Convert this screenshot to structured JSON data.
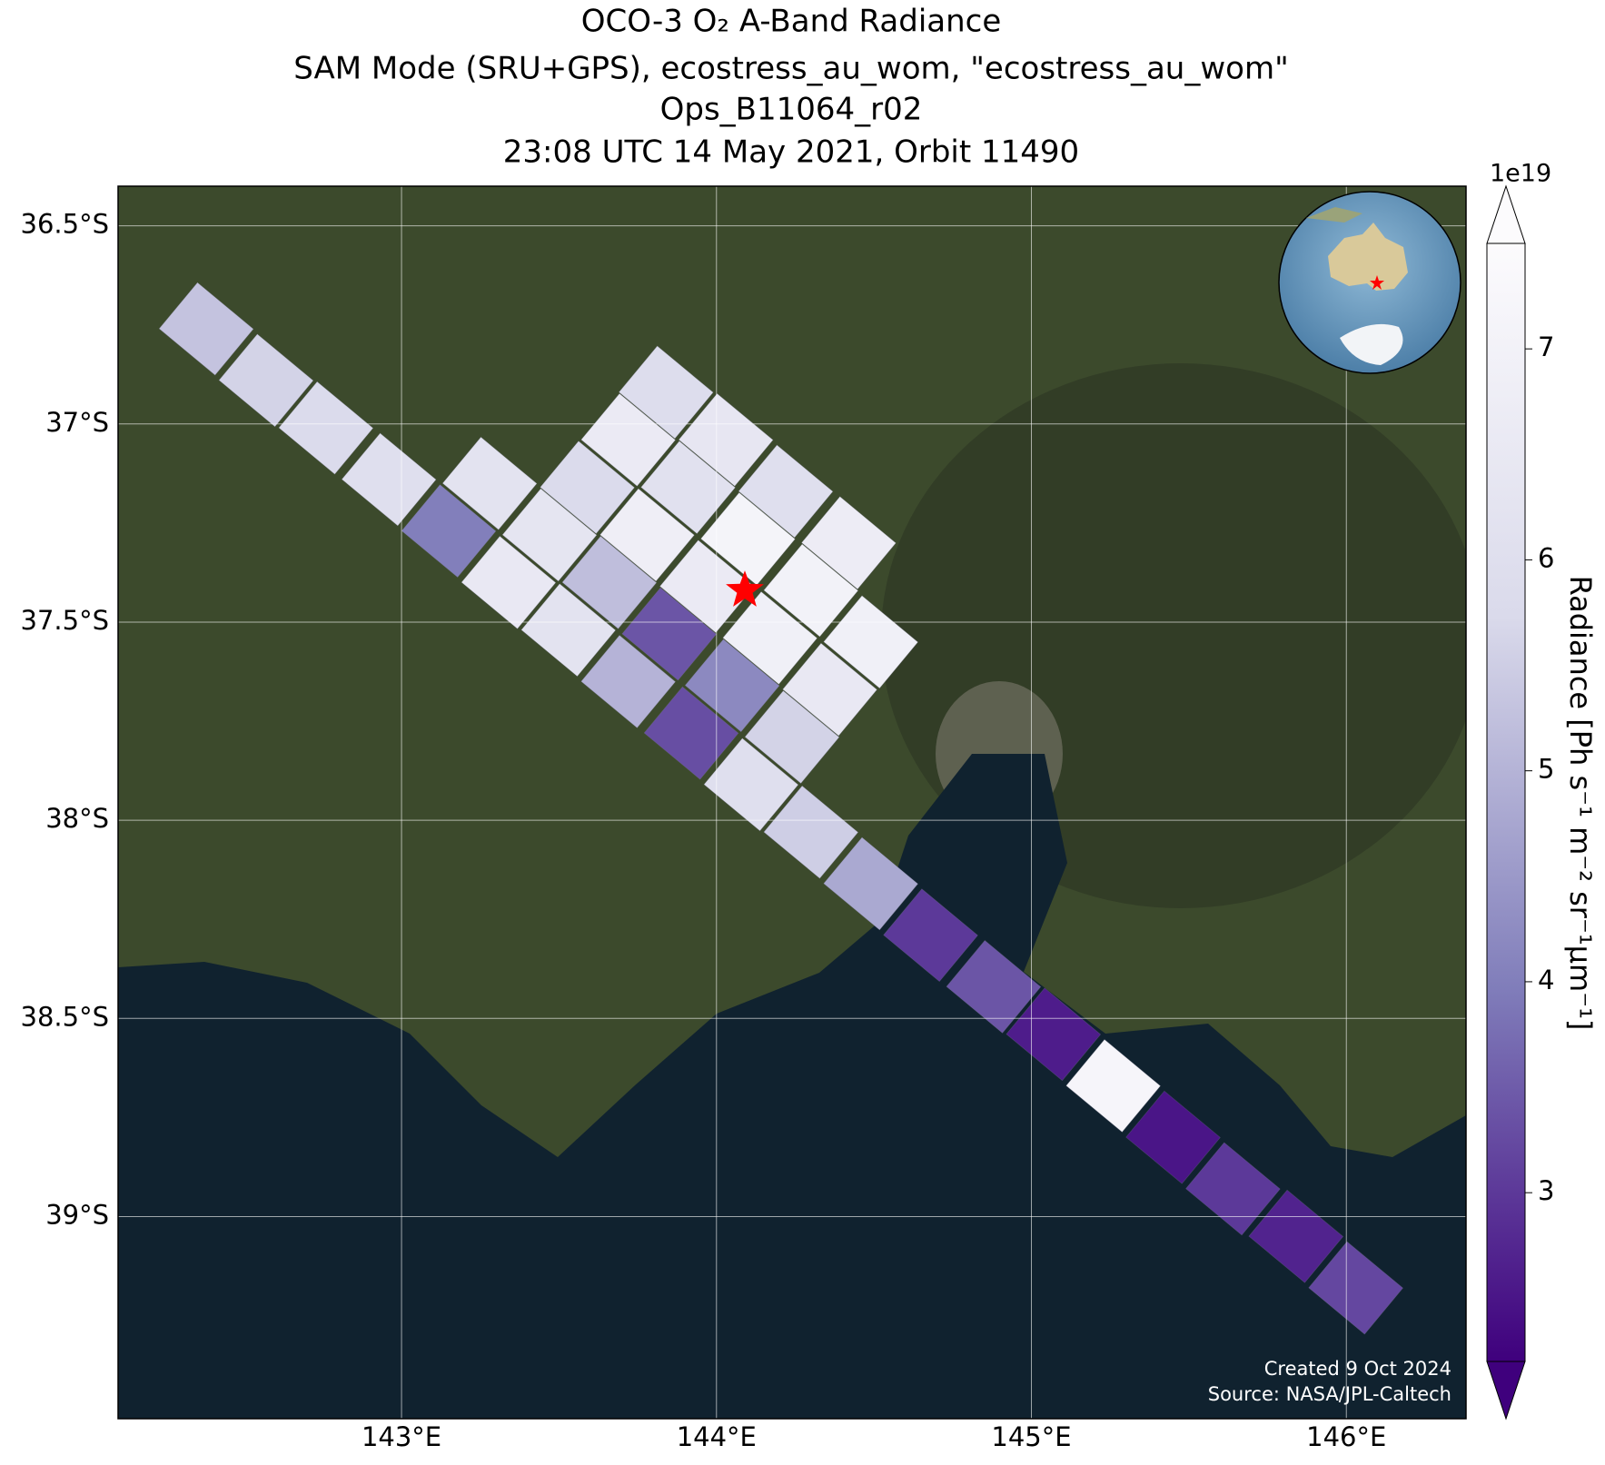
{
  "chart_data": {
    "type": "map",
    "title": [
      "OCO-3 O₂ A-Band Radiance",
      "SAM Mode (SRU+GPS), ecostress_au_wom, \"ecostress_au_wom\"",
      "Ops_B11064_r02",
      "23:08 UTC 14 May 2021, Orbit 11490"
    ],
    "xlim": [
      142.1,
      146.38
    ],
    "ylim": [
      -39.51,
      -36.4
    ],
    "xticks": [
      {
        "value": 143,
        "label": "143°E"
      },
      {
        "value": 144,
        "label": "144°E"
      },
      {
        "value": 145,
        "label": "145°E"
      },
      {
        "value": 146,
        "label": "146°E"
      }
    ],
    "yticks": [
      {
        "value": -36.5,
        "label": "36.5°S"
      },
      {
        "value": -37,
        "label": "37°S"
      },
      {
        "value": -37.5,
        "label": "37.5°S"
      },
      {
        "value": -38,
        "label": "38°S"
      },
      {
        "value": -38.5,
        "label": "38.5°S"
      },
      {
        "value": -39,
        "label": "39°S"
      }
    ],
    "grid": true,
    "colorbar": {
      "label": "Radiance [Ph s⁻¹ m⁻² sr⁻¹μm⁻¹]",
      "offset_label": "1e19",
      "clim": [
        2.2,
        7.5
      ],
      "ticks": [
        3,
        4,
        5,
        6,
        7
      ],
      "colors": [
        "#3f007d",
        "#807dba",
        "#dadaeb",
        "#fcfbfd"
      ]
    },
    "cells": {
      "lon": [
        142.38,
        142.57,
        142.76,
        142.96,
        143.15,
        143.34,
        143.53,
        143.72,
        143.92,
        144.11,
        144.3,
        144.49,
        144.68,
        144.88,
        145.07,
        145.26,
        145.45,
        145.64,
        145.84,
        146.03,
        143.47,
        143.59,
        143.72,
        143.84,
        143.66,
        143.78,
        143.91,
        144.03,
        143.85,
        143.97,
        144.1,
        144.22,
        144.05,
        144.17,
        144.3,
        144.42,
        144.24,
        144.36,
        144.49,
        143.28
      ],
      "lat": [
        -36.76,
        -36.89,
        -37.01,
        -37.14,
        -37.27,
        -37.4,
        -37.52,
        -37.65,
        -37.78,
        -37.91,
        -38.03,
        -38.16,
        -38.29,
        -38.42,
        -38.54,
        -38.67,
        -38.8,
        -38.93,
        -39.05,
        -39.18,
        -37.28,
        -37.16,
        -37.04,
        -36.92,
        -37.4,
        -37.28,
        -37.16,
        -37.04,
        -37.53,
        -37.41,
        -37.29,
        -37.17,
        -37.66,
        -37.54,
        -37.42,
        -37.3,
        -37.79,
        -37.67,
        -37.55,
        -37.15
      ],
      "values": [
        5.3,
        5.6,
        5.8,
        6.0,
        4.0,
        6.5,
        6.2,
        5.0,
        3.3,
        6.0,
        5.5,
        4.8,
        3.0,
        3.4,
        2.6,
        7.2,
        2.5,
        3.0,
        2.7,
        3.2,
        6.3,
        5.8,
        6.6,
        5.9,
        5.2,
        6.8,
        6.1,
        6.4,
        3.4,
        6.6,
        7.1,
        6.0,
        4.2,
        6.9,
        7.0,
        6.7,
        5.6,
        6.5,
        6.9,
        6.2
      ]
    },
    "target": {
      "lon": 144.09,
      "lat": -37.42,
      "color": "#ff0000"
    },
    "credits": [
      "Created 9 Oct 2024",
      "Source: NASA/JPL-Caltech"
    ]
  }
}
